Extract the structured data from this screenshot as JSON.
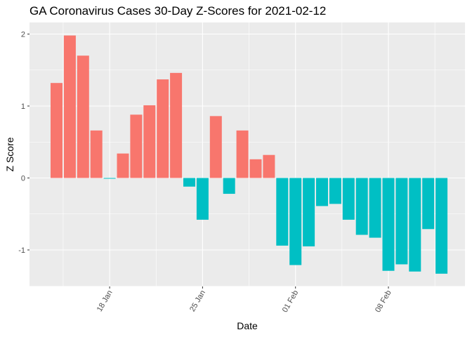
{
  "chart_data": {
    "type": "bar",
    "title": "GA Coronavirus Cases 30-Day Z-Scores for 2021-02-12",
    "xlabel": "Date",
    "ylabel": "Z Score",
    "x": [
      "2021-01-14",
      "2021-01-15",
      "2021-01-16",
      "2021-01-17",
      "2021-01-18",
      "2021-01-19",
      "2021-01-20",
      "2021-01-21",
      "2021-01-22",
      "2021-01-23",
      "2021-01-24",
      "2021-01-25",
      "2021-01-26",
      "2021-01-27",
      "2021-01-28",
      "2021-01-29",
      "2021-01-30",
      "2021-01-31",
      "2021-02-01",
      "2021-02-02",
      "2021-02-03",
      "2021-02-04",
      "2021-02-05",
      "2021-02-06",
      "2021-02-07",
      "2021-02-08",
      "2021-02-09",
      "2021-02-10",
      "2021-02-11",
      "2021-02-12"
    ],
    "values": [
      1.32,
      1.98,
      1.7,
      0.66,
      -0.01,
      0.34,
      0.88,
      1.01,
      1.37,
      1.46,
      -0.12,
      -0.58,
      0.86,
      -0.22,
      0.66,
      0.26,
      0.32,
      -0.94,
      -1.21,
      -0.95,
      -0.39,
      -0.36,
      -0.58,
      -0.79,
      -0.83,
      -1.29,
      -1.2,
      -1.3,
      -0.71,
      -1.33
    ],
    "positive_color": "#F8766D",
    "negative_color": "#00BFC4",
    "ylim": [
      -1.5,
      2.1
    ],
    "yticks": [
      -1,
      0,
      1,
      2
    ],
    "xticks": [
      {
        "date": "2021-01-18",
        "label": "18 Jan"
      },
      {
        "date": "2021-01-25",
        "label": "25 Jan"
      },
      {
        "date": "2021-02-01",
        "label": "01 Feb"
      },
      {
        "date": "2021-02-08",
        "label": "08 Feb"
      }
    ],
    "grid": true,
    "legend": "none",
    "panel_background": "#EBEBEB"
  }
}
